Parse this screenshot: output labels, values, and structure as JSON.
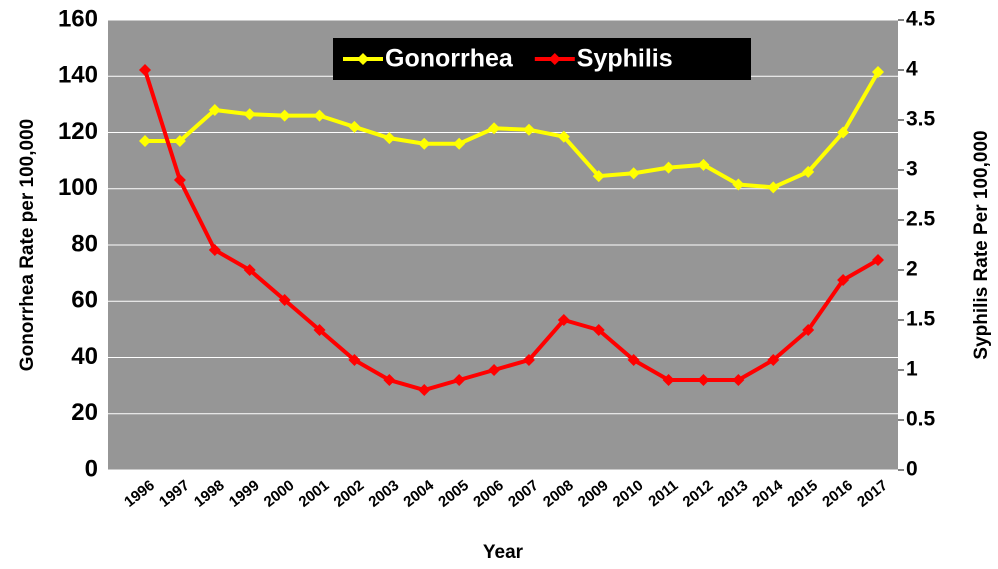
{
  "chart_data": {
    "type": "line",
    "categories": [
      "1996",
      "1997",
      "1998",
      "1999",
      "2000",
      "2001",
      "2002",
      "2003",
      "2004",
      "2005",
      "2006",
      "2007",
      "2008",
      "2009",
      "2010",
      "2011",
      "2012",
      "2013",
      "2014",
      "2015",
      "2016",
      "2017"
    ],
    "series": [
      {
        "name": "Gonorrhea",
        "color": "#ffff00",
        "values": [
          117,
          117,
          128,
          126.5,
          126,
          126,
          122,
          118,
          116,
          116,
          121.5,
          121,
          118.5,
          104.5,
          105.5,
          107.5,
          108.5,
          101.5,
          100.5,
          106,
          120,
          141.5
        ]
      },
      {
        "name": "Syphilis",
        "color": "#ff0000",
        "axis": "y2",
        "values": [
          4.0,
          2.9,
          2.2,
          2.0,
          1.7,
          1.4,
          1.1,
          0.9,
          0.8,
          0.9,
          1.0,
          1.1,
          1.5,
          1.4,
          1.1,
          0.9,
          0.9,
          0.9,
          1.1,
          1.4,
          1.9,
          2.1
        ]
      }
    ],
    "xlabel": "Year",
    "ylabel": "Gonorrhea Rate per 100,000",
    "y2label": "Syphilis Rate Per 100,000",
    "ylim": [
      0,
      160
    ],
    "yticks": [
      0,
      20,
      40,
      60,
      80,
      100,
      120,
      140,
      160
    ],
    "y2lim": [
      0,
      4.5
    ],
    "y2ticks": [
      0,
      0.5,
      1,
      1.5,
      2,
      2.5,
      3,
      3.5,
      4,
      4.5
    ],
    "grid": true,
    "legend": "top"
  }
}
